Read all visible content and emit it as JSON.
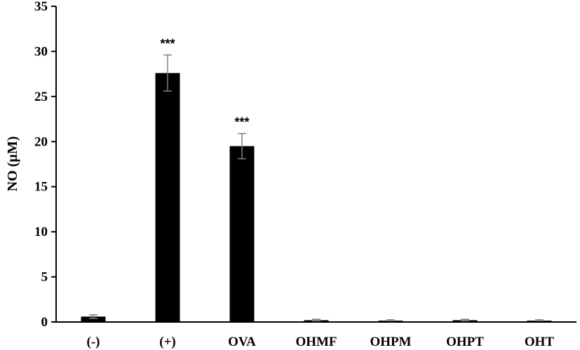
{
  "chart_data": {
    "type": "bar",
    "title": "",
    "xlabel": "",
    "ylabel": "NO (µM)",
    "ylim": [
      0,
      35
    ],
    "yticks": [
      0,
      5,
      10,
      15,
      20,
      25,
      30,
      35
    ],
    "grid": false,
    "categories": [
      "(-)",
      "(+)",
      "OVA",
      "OHMF",
      "OHPM",
      "OHPT",
      "OHT"
    ],
    "values": [
      0.6,
      27.6,
      19.5,
      0.2,
      0.15,
      0.2,
      0.15
    ],
    "errors": [
      0.2,
      2.0,
      1.4,
      0.1,
      0.1,
      0.1,
      0.1
    ],
    "annotations": [
      "",
      "***",
      "***",
      "",
      "",
      "",
      ""
    ],
    "colors": {
      "bar": "#000000",
      "error_bar": "#808080",
      "axis": "#000000"
    }
  }
}
